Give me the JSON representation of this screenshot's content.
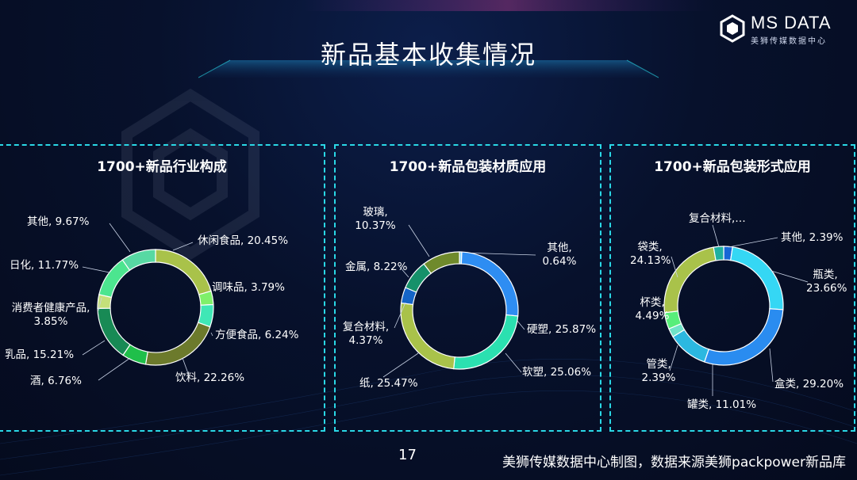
{
  "page": {
    "title": "新品基本收集情况",
    "page_number": "17",
    "source_note": "美狮传媒数据中心制图，数据来源美狮packpower新品库"
  },
  "brand": {
    "name": "MS DATA",
    "subtitle": "美狮传媒数据中心"
  },
  "colors": {
    "accent": "#2ad8e6",
    "background": "#07112c"
  },
  "chart_data": [
    {
      "type": "pie",
      "title": "1700+新品行业构成",
      "slices": [
        {
          "name": "休闲食品",
          "value": 20.45,
          "label": "休闲食品, 20.45%",
          "color": "#a9c24a"
        },
        {
          "name": "调味品",
          "value": 3.79,
          "label": "调味品, 3.79%",
          "color": "#7ff06a"
        },
        {
          "name": "方便食品",
          "value": 6.24,
          "label": "方便食品, 6.24%",
          "color": "#3fe7b6"
        },
        {
          "name": "饮料",
          "value": 22.26,
          "label": "饮料, 22.26%",
          "color": "#6c7a2c"
        },
        {
          "name": "酒",
          "value": 6.76,
          "label": "酒, 6.76%",
          "color": "#1fbf4a"
        },
        {
          "name": "乳品",
          "value": 15.21,
          "label": "乳品, 15.21%",
          "color": "#188a55"
        },
        {
          "name": "消费者健康产品",
          "value": 3.85,
          "label": "消费者健康产品, 3.85%",
          "color": "#c5e07a"
        },
        {
          "name": "日化",
          "value": 11.77,
          "label": "日化, 11.77%",
          "color": "#4ce58f"
        },
        {
          "name": "其他",
          "value": 9.67,
          "label": "其他, 9.67%",
          "color": "#57d9a3"
        }
      ]
    },
    {
      "type": "pie",
      "title": "1700+新品包装材质应用",
      "slices": [
        {
          "name": "其他",
          "value": 0.64,
          "label": "其他, 0.64%",
          "color": "#7fd4ff"
        },
        {
          "name": "硬塑",
          "value": 25.87,
          "label": "硬塑, 25.87%",
          "color": "#2e8df2"
        },
        {
          "name": "软塑",
          "value": 25.06,
          "label": "软塑, 25.06%",
          "color": "#2be0b0"
        },
        {
          "name": "纸",
          "value": 25.47,
          "label": "纸, 25.47%",
          "color": "#a9c24a"
        },
        {
          "name": "复合材料",
          "value": 4.37,
          "label": "复合材料, 4.37%",
          "color": "#1565c8"
        },
        {
          "name": "金属",
          "value": 8.22,
          "label": "金属, 8.22%",
          "color": "#16916a"
        },
        {
          "name": "玻璃",
          "value": 10.37,
          "label": "玻璃, 10.37%",
          "color": "#6f8a2c"
        }
      ]
    },
    {
      "type": "pie",
      "title": "1700+新品包装形式应用",
      "slices": [
        {
          "name": "其他",
          "value": 2.39,
          "label": "其他, 2.39%",
          "color": "#1666d6"
        },
        {
          "name": "瓶类",
          "value": 23.66,
          "label": "瓶类, 23.66%",
          "color": "#35d7f4"
        },
        {
          "name": "盒类",
          "value": 29.2,
          "label": "盒类, 29.20%",
          "color": "#2a8cf0"
        },
        {
          "name": "罐类",
          "value": 11.01,
          "label": "罐类, 11.01%",
          "color": "#2bb8e0"
        },
        {
          "name": "管类",
          "value": 2.39,
          "label": "管类, 2.39%",
          "color": "#6fe3c8"
        },
        {
          "name": "杯类",
          "value": 4.49,
          "label": "杯类, 4.49%",
          "color": "#58ee7a"
        },
        {
          "name": "袋类",
          "value": 24.13,
          "label": "袋类, 24.13%",
          "color": "#a9c24a"
        },
        {
          "name": "复合材料",
          "value": 2.73,
          "label": "复合材料,…",
          "color": "#1fb0a0"
        }
      ]
    }
  ]
}
